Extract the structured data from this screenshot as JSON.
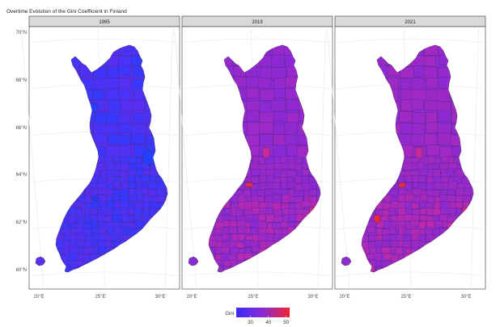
{
  "title": "Overtime Evolution of the Gini Coefficient in Finland",
  "panels": [
    {
      "label": "1995",
      "base_color": "#5a2ff2",
      "accent_color": "#2b3cff"
    },
    {
      "label": "2019",
      "base_color": "#8a2ad6",
      "accent_color": "#c02ab0"
    },
    {
      "label": "2021",
      "base_color": "#8d2ad2",
      "accent_color": "#c42aaa"
    }
  ],
  "y_ticks": [
    "70°N",
    "68°N",
    "66°N",
    "64°N",
    "62°N",
    "60°N"
  ],
  "x_ticks": [
    "20°E",
    "25°E",
    "30°E"
  ],
  "legend": {
    "title": "Gini",
    "ticks": [
      "30",
      "40",
      "50"
    ],
    "low_color": "#3a2cf5",
    "mid_color": "#8a2ad6",
    "high_color": "#f4232d",
    "range": [
      22,
      52
    ]
  }
}
